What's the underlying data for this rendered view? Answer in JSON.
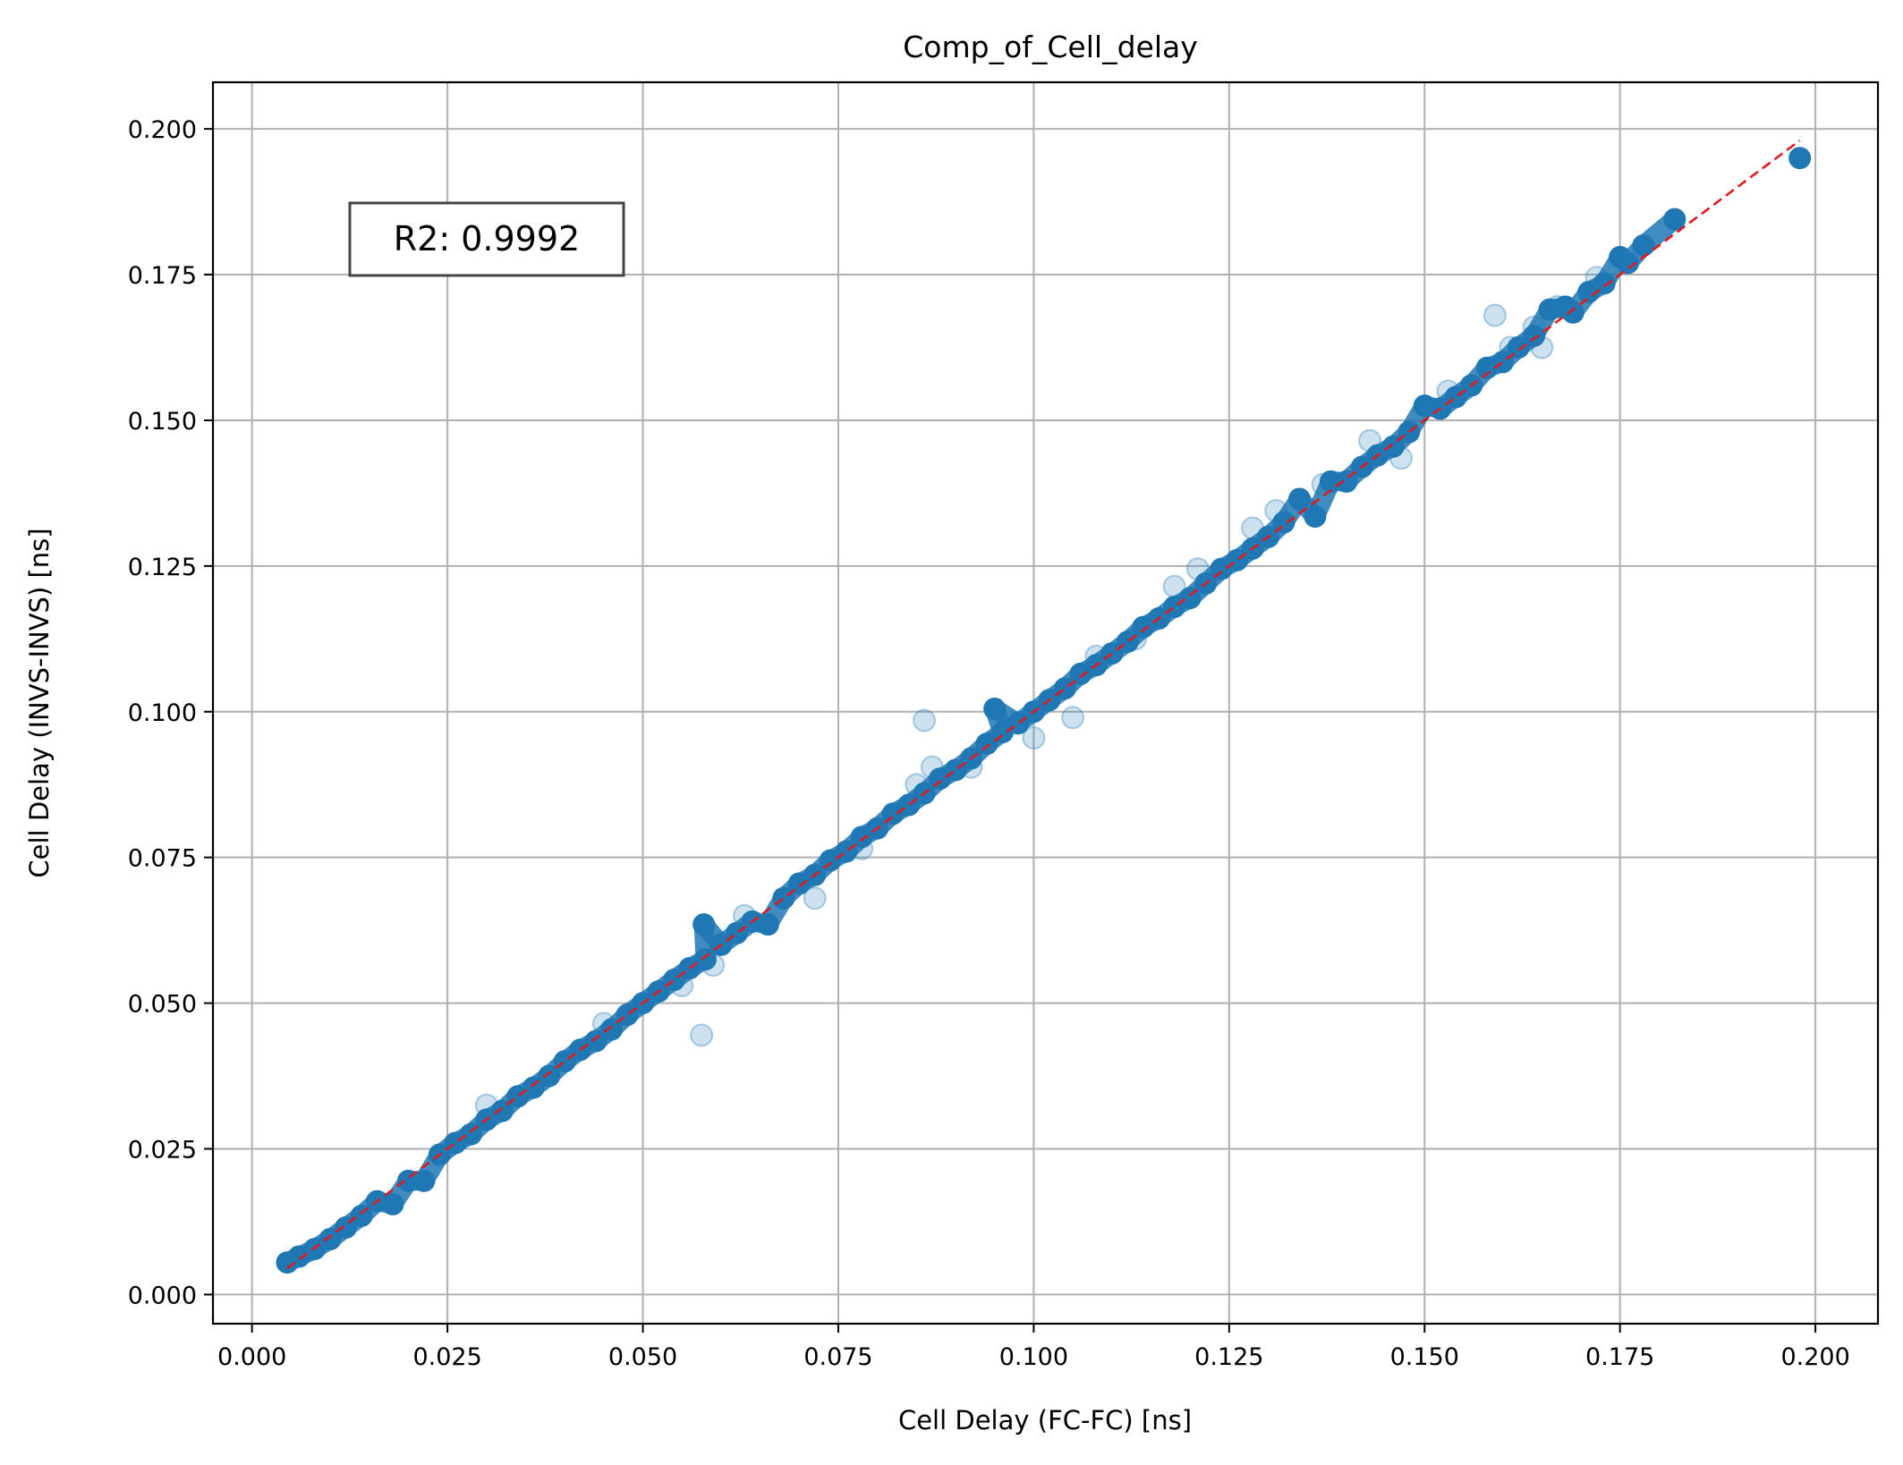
{
  "chart_data": {
    "type": "scatter",
    "title": "Comp_of_Cell_delay",
    "xlabel": "Cell Delay (FC-FC) [ns]",
    "ylabel": "Cell Delay (INVS-INVS) [ns]",
    "xlim": [
      -0.005,
      0.208
    ],
    "ylim": [
      -0.005,
      0.208
    ],
    "xticks": [
      0.0,
      0.025,
      0.05,
      0.075,
      0.1,
      0.125,
      0.15,
      0.175,
      0.2
    ],
    "yticks": [
      0.0,
      0.025,
      0.05,
      0.075,
      0.1,
      0.125,
      0.15,
      0.175,
      0.2
    ],
    "xtick_labels": [
      "0.000",
      "0.025",
      "0.050",
      "0.075",
      "0.100",
      "0.125",
      "0.150",
      "0.175",
      "0.200"
    ],
    "ytick_labels": [
      "0.000",
      "0.025",
      "0.050",
      "0.075",
      "0.100",
      "0.125",
      "0.150",
      "0.175",
      "0.200"
    ],
    "grid": true,
    "annotation": {
      "text": "R2: 0.9992"
    },
    "point_color": "#1f77b4",
    "reference_line": {
      "color": "#e31a1c",
      "style": "dashed",
      "x": [
        0.0045,
        0.198
      ],
      "y": [
        0.0045,
        0.198
      ]
    },
    "series": [
      {
        "points": [
          [
            0.0045,
            0.0055
          ],
          [
            0.006,
            0.0065
          ],
          [
            0.008,
            0.0078
          ],
          [
            0.01,
            0.0095
          ],
          [
            0.012,
            0.0115
          ],
          [
            0.014,
            0.0135
          ],
          [
            0.016,
            0.016
          ],
          [
            0.018,
            0.0155
          ],
          [
            0.02,
            0.0195
          ],
          [
            0.022,
            0.0195
          ],
          [
            0.024,
            0.024
          ],
          [
            0.026,
            0.026
          ],
          [
            0.028,
            0.0275
          ],
          [
            0.03,
            0.03
          ],
          [
            0.032,
            0.0315
          ],
          [
            0.034,
            0.034
          ],
          [
            0.036,
            0.0355
          ],
          [
            0.038,
            0.0375
          ],
          [
            0.04,
            0.04
          ],
          [
            0.042,
            0.042
          ],
          [
            0.044,
            0.0435
          ],
          [
            0.046,
            0.0455
          ],
          [
            0.048,
            0.048
          ],
          [
            0.05,
            0.05
          ],
          [
            0.052,
            0.052
          ],
          [
            0.054,
            0.054
          ],
          [
            0.056,
            0.056
          ],
          [
            0.058,
            0.0575
          ],
          [
            0.0578,
            0.0635
          ],
          [
            0.06,
            0.06
          ],
          [
            0.062,
            0.062
          ],
          [
            0.064,
            0.064
          ],
          [
            0.066,
            0.0635
          ],
          [
            0.068,
            0.068
          ],
          [
            0.07,
            0.0705
          ],
          [
            0.072,
            0.072
          ],
          [
            0.074,
            0.0745
          ],
          [
            0.076,
            0.076
          ],
          [
            0.078,
            0.0785
          ],
          [
            0.08,
            0.08
          ],
          [
            0.082,
            0.0825
          ],
          [
            0.084,
            0.084
          ],
          [
            0.086,
            0.086
          ],
          [
            0.088,
            0.0885
          ],
          [
            0.09,
            0.09
          ],
          [
            0.092,
            0.092
          ],
          [
            0.094,
            0.0945
          ],
          [
            0.096,
            0.0965
          ],
          [
            0.095,
            0.1005
          ],
          [
            0.098,
            0.098
          ],
          [
            0.1,
            0.1
          ],
          [
            0.102,
            0.102
          ],
          [
            0.104,
            0.104
          ],
          [
            0.106,
            0.1065
          ],
          [
            0.108,
            0.108
          ],
          [
            0.11,
            0.11
          ],
          [
            0.112,
            0.112
          ],
          [
            0.114,
            0.1145
          ],
          [
            0.116,
            0.116
          ],
          [
            0.118,
            0.118
          ],
          [
            0.12,
            0.1195
          ],
          [
            0.122,
            0.122
          ],
          [
            0.124,
            0.1245
          ],
          [
            0.126,
            0.126
          ],
          [
            0.128,
            0.128
          ],
          [
            0.13,
            0.13
          ],
          [
            0.132,
            0.1325
          ],
          [
            0.134,
            0.1365
          ],
          [
            0.136,
            0.1335
          ],
          [
            0.138,
            0.1395
          ],
          [
            0.14,
            0.1395
          ],
          [
            0.142,
            0.142
          ],
          [
            0.144,
            0.144
          ],
          [
            0.146,
            0.1455
          ],
          [
            0.148,
            0.148
          ],
          [
            0.15,
            0.1525
          ],
          [
            0.152,
            0.152
          ],
          [
            0.154,
            0.154
          ],
          [
            0.156,
            0.156
          ],
          [
            0.158,
            0.159
          ],
          [
            0.16,
            0.16
          ],
          [
            0.162,
            0.1625
          ],
          [
            0.164,
            0.1645
          ],
          [
            0.166,
            0.169
          ],
          [
            0.168,
            0.1695
          ],
          [
            0.169,
            0.1685
          ],
          [
            0.171,
            0.172
          ],
          [
            0.173,
            0.1735
          ],
          [
            0.175,
            0.178
          ],
          [
            0.176,
            0.177
          ],
          [
            0.178,
            0.18
          ],
          [
            0.182,
            0.1845
          ],
          [
            0.198,
            0.195
          ]
        ],
        "faint_points": [
          [
            0.0575,
            0.0445
          ],
          [
            0.086,
            0.0985
          ],
          [
            0.087,
            0.0905
          ],
          [
            0.1,
            0.0955
          ],
          [
            0.105,
            0.099
          ],
          [
            0.072,
            0.068
          ],
          [
            0.059,
            0.0565
          ],
          [
            0.121,
            0.1245
          ],
          [
            0.128,
            0.1315
          ],
          [
            0.147,
            0.1435
          ],
          [
            0.159,
            0.168
          ],
          [
            0.161,
            0.1625
          ],
          [
            0.164,
            0.166
          ],
          [
            0.172,
            0.1745
          ],
          [
            0.118,
            0.1215
          ],
          [
            0.03,
            0.0325
          ],
          [
            0.045,
            0.0465
          ],
          [
            0.055,
            0.053
          ],
          [
            0.063,
            0.065
          ],
          [
            0.078,
            0.0765
          ],
          [
            0.092,
            0.0905
          ],
          [
            0.108,
            0.1095
          ],
          [
            0.131,
            0.1345
          ],
          [
            0.143,
            0.1465
          ],
          [
            0.153,
            0.155
          ],
          [
            0.165,
            0.1625
          ],
          [
            0.167,
            0.1695
          ],
          [
            0.113,
            0.1125
          ],
          [
            0.137,
            0.139
          ],
          [
            0.085,
            0.0875
          ]
        ]
      }
    ]
  }
}
